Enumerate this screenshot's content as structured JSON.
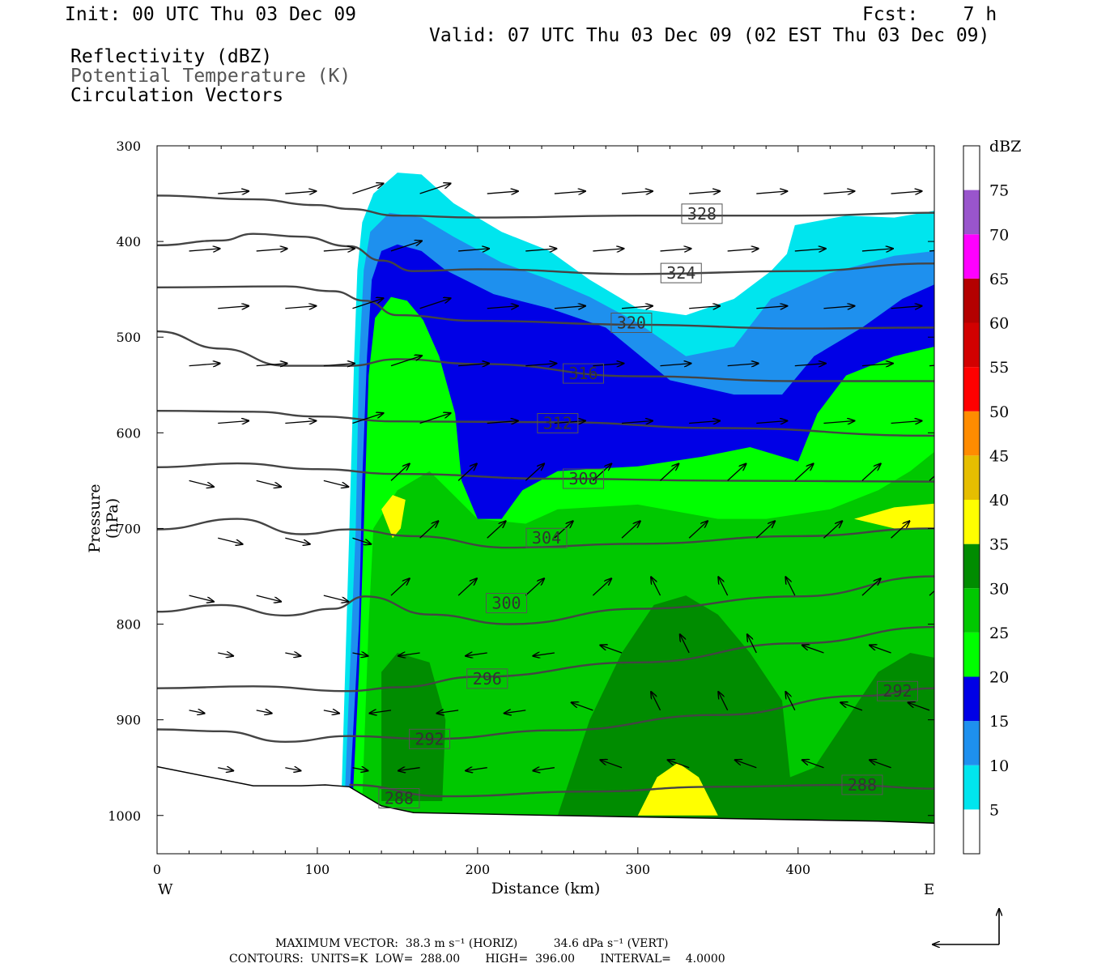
{
  "header": {
    "init": "Init: 00 UTC Thu 03 Dec 09",
    "fcst": "Fcst:    7 h",
    "valid": "Valid: 07 UTC Thu 03 Dec 09 (02 EST Thu 03 Dec 09)",
    "field1": "Reflectivity (dBZ)",
    "field2": "Potential Temperature (K)",
    "field3": "Circulation Vectors"
  },
  "axes": {
    "y_label": "Pressure (hPa)",
    "x_label": "Distance (km)",
    "x_left_dir": "W",
    "x_right_dir": "E",
    "y_ticks": [
      "300",
      "400",
      "500",
      "600",
      "700",
      "800",
      "900",
      "1000"
    ],
    "x_ticks": [
      "0",
      "100",
      "200",
      "300",
      "400"
    ]
  },
  "colorbar": {
    "unit": "dBZ",
    "labels": [
      "5",
      "10",
      "15",
      "20",
      "25",
      "30",
      "35",
      "40",
      "45",
      "50",
      "55",
      "60",
      "65",
      "70",
      "75"
    ],
    "colors": [
      "#ffffff",
      "#00e5ee",
      "#1e90ee",
      "#0000e6",
      "#00ff00",
      "#00c800",
      "#008c00",
      "#ffff00",
      "#e6be00",
      "#ff8c00",
      "#ff0000",
      "#d20000",
      "#b40000",
      "#ff00ff",
      "#9955cc"
    ]
  },
  "footer": {
    "line1": "MAXIMUM VECTOR:  38.3 m s⁻¹ (HORIZ)          34.6 dPa s⁻¹ (VERT)",
    "line2": "CONTOURS:  UNITS=K  LOW=  288.00       HIGH=  396.00       INTERVAL=    4.0000"
  },
  "chart_data": {
    "type": "heatmap",
    "title": "Reflectivity (dBZ) / Potential Temperature (K) / Circulation Vectors",
    "xlabel": "Distance (km)",
    "ylabel": "Pressure (hPa)",
    "xlim": [
      0,
      485
    ],
    "ylim": [
      1040,
      300
    ],
    "theta_contours": [
      {
        "label": "328",
        "level": 328,
        "pts": [
          [
            0,
            352
          ],
          [
            60,
            356
          ],
          [
            100,
            362
          ],
          [
            120,
            366
          ],
          [
            150,
            373
          ],
          [
            200,
            375
          ],
          [
            300,
            373
          ],
          [
            400,
            373
          ],
          [
            485,
            370
          ]
        ]
      },
      {
        "label": "324",
        "level": 324,
        "pts": [
          [
            0,
            404
          ],
          [
            40,
            399
          ],
          [
            60,
            392
          ],
          [
            90,
            395
          ],
          [
            120,
            405
          ],
          [
            140,
            420
          ],
          [
            160,
            431
          ],
          [
            200,
            429
          ],
          [
            300,
            434
          ],
          [
            400,
            431
          ],
          [
            485,
            423
          ]
        ]
      },
      {
        "label": "320",
        "level": 320,
        "pts": [
          [
            0,
            448
          ],
          [
            80,
            447
          ],
          [
            110,
            452
          ],
          [
            130,
            462
          ],
          [
            150,
            477
          ],
          [
            200,
            483
          ],
          [
            300,
            487
          ],
          [
            400,
            491
          ],
          [
            485,
            490
          ]
        ]
      },
      {
        "label": "316",
        "level": 316,
        "pts": [
          [
            0,
            494
          ],
          [
            40,
            512
          ],
          [
            80,
            530
          ],
          [
            120,
            530
          ],
          [
            150,
            523
          ],
          [
            200,
            528
          ],
          [
            300,
            541
          ],
          [
            400,
            546
          ],
          [
            485,
            546
          ]
        ]
      },
      {
        "label": "312",
        "level": 312,
        "pts": [
          [
            0,
            577
          ],
          [
            60,
            578
          ],
          [
            100,
            583
          ],
          [
            150,
            588
          ],
          [
            250,
            589
          ],
          [
            350,
            595
          ],
          [
            485,
            603
          ]
        ]
      },
      {
        "label": "308",
        "level": 308,
        "pts": [
          [
            0,
            636
          ],
          [
            50,
            632
          ],
          [
            100,
            638
          ],
          [
            150,
            643
          ],
          [
            250,
            648
          ],
          [
            350,
            650
          ],
          [
            485,
            651
          ]
        ]
      },
      {
        "label": "304",
        "level": 304,
        "pts": [
          [
            0,
            701
          ],
          [
            50,
            690
          ],
          [
            90,
            706
          ],
          [
            120,
            701
          ],
          [
            160,
            708
          ],
          [
            220,
            720
          ],
          [
            300,
            716
          ],
          [
            400,
            708
          ],
          [
            485,
            700
          ]
        ]
      },
      {
        "label": "300",
        "level": 300,
        "pts": [
          [
            0,
            787
          ],
          [
            40,
            780
          ],
          [
            80,
            791
          ],
          [
            110,
            784
          ],
          [
            130,
            771
          ],
          [
            170,
            790
          ],
          [
            220,
            800
          ],
          [
            300,
            784
          ],
          [
            400,
            771
          ],
          [
            485,
            750
          ]
        ]
      },
      {
        "label": "296",
        "level": 296,
        "pts": [
          [
            0,
            867
          ],
          [
            60,
            865
          ],
          [
            120,
            870
          ],
          [
            150,
            866
          ],
          [
            200,
            855
          ],
          [
            300,
            840
          ],
          [
            400,
            820
          ],
          [
            485,
            803
          ]
        ]
      },
      {
        "label": "292",
        "level": 292,
        "pts": [
          [
            0,
            910
          ],
          [
            40,
            912
          ],
          [
            80,
            923
          ],
          [
            120,
            917
          ],
          [
            170,
            920
          ],
          [
            250,
            911
          ],
          [
            350,
            895
          ],
          [
            440,
            875
          ],
          [
            485,
            867
          ]
        ]
      },
      {
        "label": "288",
        "level": 288,
        "pts": [
          [
            120,
            968
          ],
          [
            180,
            980
          ],
          [
            270,
            975
          ],
          [
            350,
            970
          ],
          [
            430,
            968
          ],
          [
            485,
            972
          ]
        ]
      }
    ],
    "terrain": [
      [
        0,
        949
      ],
      [
        60,
        969
      ],
      [
        90,
        969
      ],
      [
        105,
        968
      ],
      [
        120,
        970
      ],
      [
        140,
        990
      ],
      [
        160,
        997
      ],
      [
        250,
        1000
      ],
      [
        350,
        1003
      ],
      [
        450,
        1006
      ],
      [
        485,
        1008
      ]
    ],
    "reflectivity_regions": [
      {
        "dbz": 5,
        "pts": [
          [
            115,
            985
          ],
          [
            120,
            700
          ],
          [
            123,
            520
          ],
          [
            125,
            430
          ],
          [
            128,
            380
          ],
          [
            135,
            350
          ],
          [
            150,
            328
          ],
          [
            165,
            330
          ],
          [
            185,
            360
          ],
          [
            215,
            390
          ],
          [
            245,
            410
          ],
          [
            270,
            440
          ],
          [
            300,
            470
          ],
          [
            330,
            477
          ],
          [
            360,
            460
          ],
          [
            383,
            431
          ],
          [
            393,
            413
          ],
          [
            398,
            383
          ],
          [
            430,
            373
          ],
          [
            460,
            375
          ],
          [
            485,
            368
          ],
          [
            485,
            1010
          ],
          [
            115,
            1010
          ]
        ]
      },
      {
        "dbz": 10,
        "pts": [
          [
            117,
            985
          ],
          [
            124,
            700
          ],
          [
            126,
            530
          ],
          [
            129,
            430
          ],
          [
            133,
            390
          ],
          [
            145,
            370
          ],
          [
            165,
            375
          ],
          [
            185,
            395
          ],
          [
            215,
            422
          ],
          [
            245,
            440
          ],
          [
            270,
            458
          ],
          [
            300,
            485
          ],
          [
            330,
            520
          ],
          [
            360,
            510
          ],
          [
            383,
            460
          ],
          [
            420,
            433
          ],
          [
            460,
            415
          ],
          [
            485,
            410
          ],
          [
            485,
            1010
          ],
          [
            117,
            1010
          ]
        ]
      },
      {
        "dbz": 15,
        "pts": [
          [
            120,
            985
          ],
          [
            126,
            800
          ],
          [
            128,
            650
          ],
          [
            131,
            520
          ],
          [
            134,
            440
          ],
          [
            140,
            410
          ],
          [
            150,
            403
          ],
          [
            165,
            410
          ],
          [
            180,
            430
          ],
          [
            210,
            455
          ],
          [
            245,
            470
          ],
          [
            280,
            490
          ],
          [
            320,
            545
          ],
          [
            360,
            560
          ],
          [
            390,
            560
          ],
          [
            410,
            520
          ],
          [
            440,
            490
          ],
          [
            465,
            460
          ],
          [
            485,
            445
          ],
          [
            485,
            1010
          ],
          [
            120,
            1010
          ]
        ]
      },
      {
        "dbz": 20,
        "pts": [
          [
            122,
            985
          ],
          [
            126,
            850
          ],
          [
            129,
            700
          ],
          [
            132,
            540
          ],
          [
            136,
            480
          ],
          [
            146,
            458
          ],
          [
            156,
            462
          ],
          [
            166,
            482
          ],
          [
            176,
            520
          ],
          [
            186,
            580
          ],
          [
            190,
            650
          ],
          [
            200,
            690
          ],
          [
            215,
            690
          ],
          [
            228,
            660
          ],
          [
            250,
            640
          ],
          [
            300,
            635
          ],
          [
            340,
            625
          ],
          [
            370,
            615
          ],
          [
            400,
            630
          ],
          [
            412,
            580
          ],
          [
            430,
            540
          ],
          [
            460,
            520
          ],
          [
            485,
            510
          ],
          [
            485,
            1010
          ],
          [
            122,
            1010
          ]
        ]
      },
      {
        "dbz": 25,
        "pts": [
          [
            128,
            985
          ],
          [
            132,
            800
          ],
          [
            135,
            700
          ],
          [
            150,
            660
          ],
          [
            170,
            640
          ],
          [
            200,
            690
          ],
          [
            230,
            695
          ],
          [
            250,
            680
          ],
          [
            300,
            675
          ],
          [
            350,
            690
          ],
          [
            380,
            690
          ],
          [
            420,
            680
          ],
          [
            450,
            660
          ],
          [
            470,
            640
          ],
          [
            485,
            620
          ],
          [
            485,
            1010
          ],
          [
            128,
            1010
          ]
        ]
      },
      {
        "dbz": 30,
        "pts": [
          [
            250,
            1000
          ],
          [
            270,
            900
          ],
          [
            290,
            830
          ],
          [
            310,
            780
          ],
          [
            330,
            770
          ],
          [
            350,
            790
          ],
          [
            370,
            830
          ],
          [
            390,
            880
          ],
          [
            395,
            960
          ],
          [
            410,
            950
          ],
          [
            430,
            900
          ],
          [
            450,
            850
          ],
          [
            470,
            830
          ],
          [
            485,
            835
          ],
          [
            485,
            1010
          ],
          [
            250,
            1010
          ]
        ]
      },
      {
        "dbz": 30,
        "pts": [
          [
            140,
            985
          ],
          [
            140,
            850
          ],
          [
            150,
            830
          ],
          [
            170,
            840
          ],
          [
            180,
            900
          ],
          [
            178,
            985
          ]
        ]
      },
      {
        "dbz": 35,
        "pts": [
          [
            300,
            1000
          ],
          [
            312,
            960
          ],
          [
            325,
            945
          ],
          [
            338,
            960
          ],
          [
            350,
            1000
          ]
        ]
      },
      {
        "dbz": 35,
        "pts": [
          [
            140,
            680
          ],
          [
            147,
            665
          ],
          [
            155,
            670
          ],
          [
            152,
            700
          ],
          [
            147,
            710
          ]
        ]
      },
      {
        "dbz": 35,
        "pts": [
          [
            435,
            690
          ],
          [
            460,
            678
          ],
          [
            485,
            674
          ],
          [
            485,
            700
          ],
          [
            460,
            700
          ]
        ]
      }
    ]
  }
}
